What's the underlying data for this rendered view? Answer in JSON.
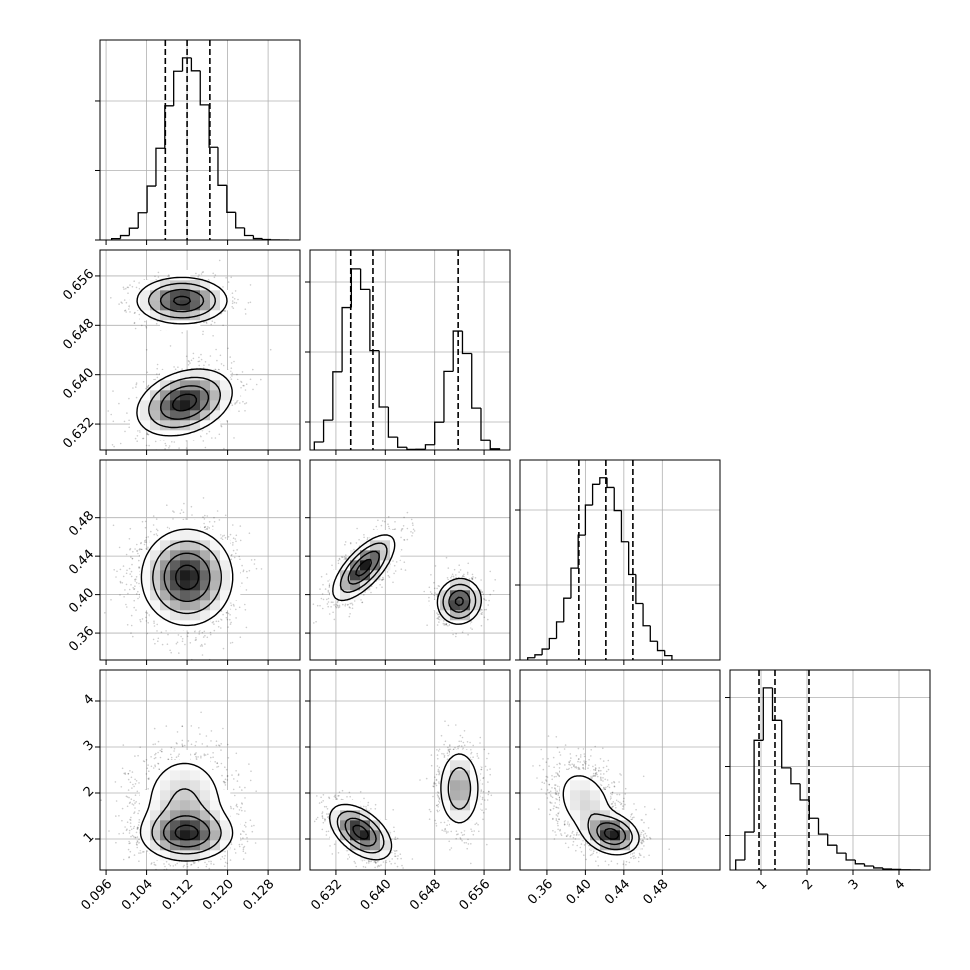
{
  "chart_data": [
    {
      "type": "histogram",
      "xlim": [
        0.0948,
        0.1343
      ],
      "xticks": [
        0.096,
        0.104,
        0.112,
        0.12,
        0.128
      ],
      "ylim": [
        0,
        2877
      ],
      "yticks": [
        0,
        1000,
        2000
      ],
      "bins": [
        0.0971,
        0.09885,
        0.1006,
        0.10235,
        0.1041,
        0.10585,
        0.1076,
        0.10935,
        0.1111,
        0.11285,
        0.1146,
        0.11635,
        0.1181,
        0.11985,
        0.1216,
        0.12335,
        0.1251,
        0.12685,
        0.1286,
        0.13035,
        0.1321
      ],
      "values": [
        20,
        64,
        170,
        392,
        776,
        1320,
        1930,
        2427,
        2620,
        2434,
        1944,
        1334,
        787,
        398,
        174,
        65,
        21,
        6,
        2,
        0
      ],
      "quantiles": [
        0.1077,
        0.112,
        0.1165
      ]
    },
    {
      "type": "contour",
      "xlim": [
        0.0948,
        0.1343
      ],
      "xticks": [
        0.096,
        0.104,
        0.112,
        0.12,
        0.128
      ],
      "ylim": [
        0.6278,
        0.6602
      ],
      "yticks": [
        0.632,
        {
          "value": 0.64,
          "label": "0.640"
        },
        0.648,
        0.656
      ],
      "blobs": [
        {
          "x": 0.111,
          "y": 0.652,
          "sx": 0.0045,
          "sy": 0.0019,
          "rho": 0,
          "weight": 0.4
        },
        {
          "x": 0.1115,
          "y": 0.6355,
          "sx": 0.0047,
          "sy": 0.0027,
          "rho": 0.3,
          "weight": 0.6
        }
      ]
    },
    {
      "type": "histogram",
      "xlim": [
        0.6278,
        0.6602
      ],
      "xticks": [
        0.632,
        0.64,
        0.648,
        0.656
      ],
      "ylim": [
        0,
        2857
      ],
      "yticks": [
        400,
        1400,
        2400
      ],
      "bins": [
        0.6285,
        0.63,
        0.6315,
        0.633,
        0.6345,
        0.636,
        0.6375,
        0.639,
        0.6405,
        0.642,
        0.6435,
        0.645,
        0.6465,
        0.648,
        0.6495,
        0.651,
        0.6525,
        0.654,
        0.6555,
        0.657,
        0.6585
      ],
      "values": [
        114,
        427,
        1117,
        2035,
        2587,
        2294,
        1420,
        614,
        184,
        39,
        9,
        10,
        75,
        397,
        1123,
        1699,
        1378,
        598,
        139,
        17
      ],
      "quantiles": [
        0.6344,
        0.638,
        0.6518
      ]
    },
    {
      "type": "contour",
      "xlim": [
        0.0948,
        0.1343
      ],
      "xticks": [
        0.096,
        0.104,
        0.112,
        0.12,
        0.128
      ],
      "ylim": [
        0.332,
        0.54
      ],
      "yticks": [
        0.36,
        {
          "value": 0.4,
          "label": "0.40"
        },
        0.44,
        0.48
      ],
      "blobs": [
        {
          "x": 0.112,
          "y": 0.418,
          "sx": 0.0045,
          "sy": 0.025,
          "rho": 0,
          "weight": 1
        }
      ]
    },
    {
      "type": "contour",
      "xlim": [
        0.6278,
        0.6602
      ],
      "xticks": [
        0.632,
        0.64,
        0.648,
        0.656
      ],
      "ylim": [
        0.332,
        0.54
      ],
      "yticks": [
        0.36,
        0.4,
        0.44,
        0.48
      ],
      "blobs": [
        {
          "x": 0.6365,
          "y": 0.428,
          "sx": 0.0025,
          "sy": 0.017,
          "rho": 0.7,
          "weight": 0.6
        },
        {
          "x": 0.652,
          "y": 0.393,
          "sx": 0.0018,
          "sy": 0.012,
          "rho": 0.05,
          "weight": 0.4
        }
      ]
    },
    {
      "type": "histogram",
      "xlim": [
        0.332,
        0.54
      ],
      "xticks": [
        0.36,
        0.4,
        0.44,
        0.48
      ],
      "ylim": [
        0,
        2667
      ],
      "yticks": [
        0,
        1000,
        2000
      ],
      "bins": [
        0.34,
        0.3475,
        0.355,
        0.3625,
        0.37,
        0.3775,
        0.385,
        0.3925,
        0.4,
        0.4075,
        0.415,
        0.4225,
        0.43,
        0.4375,
        0.445,
        0.4525,
        0.46,
        0.4675,
        0.475,
        0.4825,
        0.49
      ],
      "values": [
        30,
        69,
        146,
        287,
        508,
        824,
        1225,
        1665,
        2066,
        2343,
        2430,
        2301,
        1993,
        1577,
        1140,
        753,
        457,
        250,
        126,
        58
      ],
      "quantiles": [
        0.3932,
        0.4213,
        0.4494
      ]
    },
    {
      "type": "contour",
      "xlim": [
        0.0948,
        0.1343
      ],
      "xticks": [
        0.096,
        0.104,
        0.112,
        {
          "value": 0.12,
          "label": "0.120"
        },
        0.128
      ],
      "ylim": [
        0.326,
        4.674
      ],
      "yticks": [
        1,
        2,
        3,
        4
      ],
      "blobs": [
        {
          "x": 0.112,
          "y": 1.1,
          "sx": 0.0045,
          "sy": 0.28,
          "rho": 0,
          "weight": 0.5
        },
        {
          "x": 0.1115,
          "y": 1.8,
          "sx": 0.0047,
          "sy": 0.6,
          "rho": 0,
          "weight": 0.5
        }
      ]
    },
    {
      "type": "contour",
      "xlim": [
        0.6278,
        0.6602
      ],
      "xticks": [
        0.632,
        {
          "value": 0.64,
          "label": "0.640"
        },
        0.648,
        0.656
      ],
      "ylim": [
        0.326,
        4.674
      ],
      "yticks": [
        1,
        2,
        3,
        4
      ],
      "blobs": [
        {
          "x": 0.636,
          "y": 1.15,
          "sx": 0.0025,
          "sy": 0.3,
          "rho": -0.5,
          "weight": 0.6
        },
        {
          "x": 0.652,
          "y": 2.1,
          "sx": 0.0018,
          "sy": 0.45,
          "rho": 0,
          "weight": 0.4
        }
      ]
    },
    {
      "type": "contour",
      "xlim": [
        0.332,
        0.54
      ],
      "xticks": [
        0.36,
        {
          "value": 0.4,
          "label": "0.40"
        },
        0.44,
        0.48
      ],
      "ylim": [
        0.326,
        4.674
      ],
      "yticks": [
        1,
        2,
        3,
        4
      ],
      "blobs": [
        {
          "x": 0.4,
          "y": 1.8,
          "sx": 0.018,
          "sy": 0.45,
          "rho": -0.3,
          "weight": 0.45
        },
        {
          "x": 0.428,
          "y": 1.1,
          "sx": 0.014,
          "sy": 0.22,
          "rho": -0.2,
          "weight": 0.55
        }
      ]
    },
    {
      "type": "histogram",
      "xlim": [
        0.326,
        4.674
      ],
      "xticks": [
        1,
        2,
        3,
        4
      ],
      "ylim": [
        0,
        2899
      ],
      "yticks": [
        500,
        1500,
        2500
      ],
      "bins": [
        0.45,
        0.65,
        0.85,
        1.05,
        1.25,
        1.45,
        1.65,
        1.85,
        2.05,
        2.25,
        2.45,
        2.65,
        2.85,
        3.05,
        3.25,
        3.45,
        3.65,
        3.85,
        4.05,
        4.25,
        4.45
      ],
      "values": [
        145,
        550,
        1880,
        2640,
        2170,
        1480,
        1250,
        1015,
        750,
        520,
        360,
        245,
        145,
        90,
        58,
        30,
        15,
        8,
        4,
        2
      ],
      "quantiles": [
        0.957,
        1.304,
        2.043
      ]
    }
  ]
}
